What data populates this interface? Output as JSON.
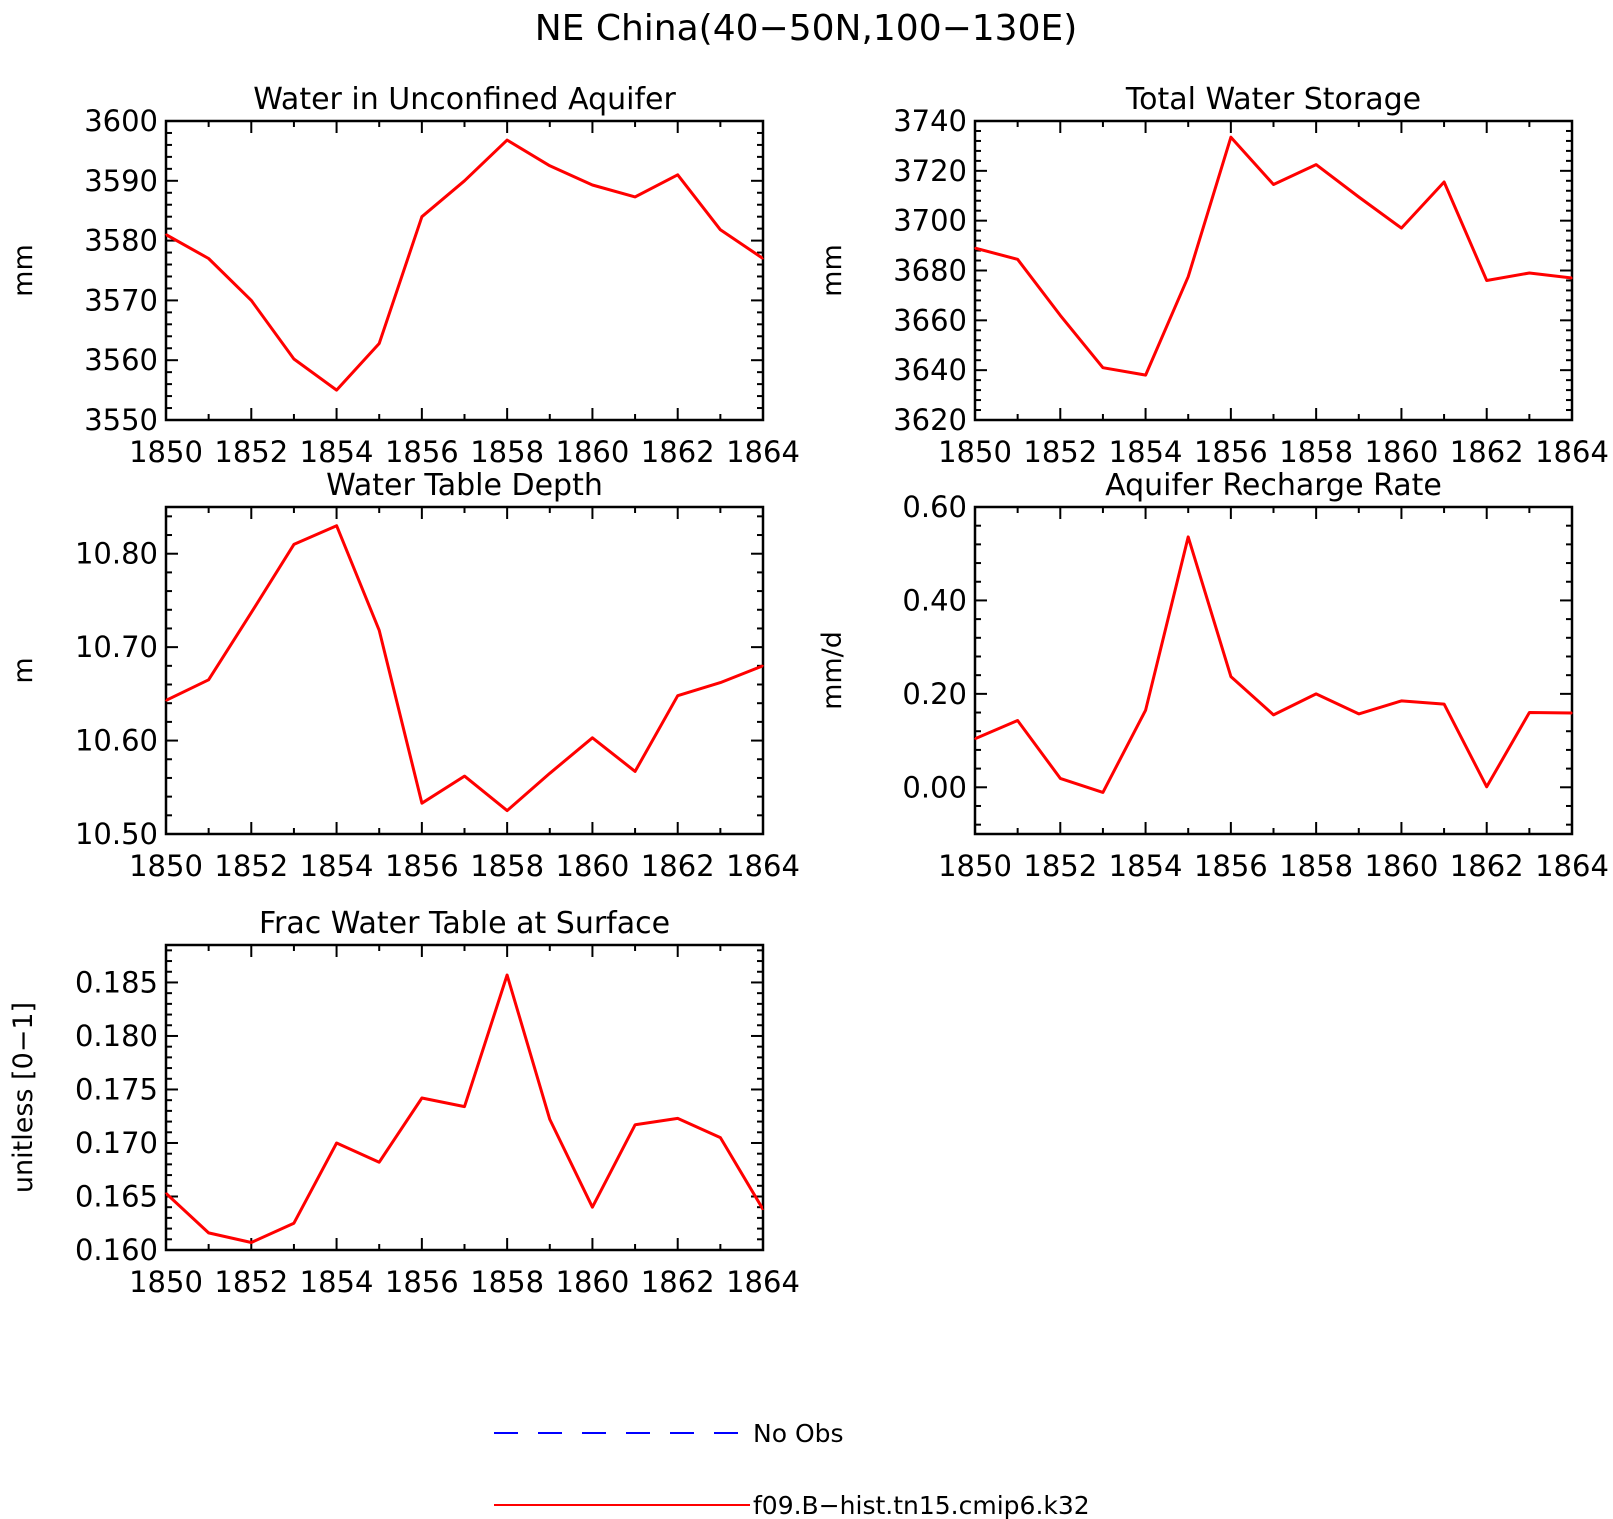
{
  "title": "NE China(40−50N,100−130E)",
  "colors": {
    "model": "#ff0000",
    "obs": "#0000ff",
    "axis": "#000000"
  },
  "legend": {
    "placement": "bottom-center",
    "items": [
      {
        "label": "No Obs",
        "color": "#0000ff",
        "dash": "dashed"
      },
      {
        "label": "f09.B−hist.tn15.cmip6.k32",
        "color": "#ff0000",
        "dash": "solid"
      }
    ]
  },
  "chart_data": [
    {
      "type": "line",
      "title": "Water in Unconfined Aquifer",
      "ylabel": "mm",
      "xlim": [
        1850,
        1864
      ],
      "ylim": [
        3550,
        3600
      ],
      "xticks": [
        "1850",
        "1852",
        "1854",
        "1856",
        "1858",
        "1860",
        "1862",
        "1864"
      ],
      "yticks": [
        "3550",
        "3560",
        "3570",
        "3580",
        "3590",
        "3600"
      ],
      "x": [
        1850,
        1851,
        1852,
        1853,
        1854,
        1855,
        1856,
        1857,
        1858,
        1859,
        1860,
        1861,
        1862,
        1863,
        1864
      ],
      "series": [
        {
          "values": [
            3581,
            3577,
            3570,
            3560.2,
            3555,
            3562.8,
            3584,
            3590,
            3596.8,
            3592.5,
            3589.3,
            3587.3,
            3591,
            3581.8,
            3577
          ]
        }
      ]
    },
    {
      "type": "line",
      "title": "Total Water Storage",
      "ylabel": "mm",
      "xlim": [
        1850,
        1864
      ],
      "ylim": [
        3620,
        3740
      ],
      "xticks": [
        "1850",
        "1852",
        "1854",
        "1856",
        "1858",
        "1860",
        "1862",
        "1864"
      ],
      "yticks": [
        "3620",
        "3640",
        "3660",
        "3680",
        "3700",
        "3720",
        "3740"
      ],
      "x": [
        1850,
        1851,
        1852,
        1853,
        1854,
        1855,
        1856,
        1857,
        1858,
        1859,
        1860,
        1861,
        1862,
        1863,
        1864
      ],
      "series": [
        {
          "values": [
            3689,
            3684.5,
            3662,
            3641,
            3638,
            3677.5,
            3733.5,
            3714.5,
            3722.5,
            3709.5,
            3697,
            3715.5,
            3676,
            3679,
            3677
          ]
        }
      ]
    },
    {
      "type": "line",
      "title": "Water Table Depth",
      "ylabel": "m",
      "xlim": [
        1850,
        1864
      ],
      "ylim": [
        10.5,
        10.85
      ],
      "xticks": [
        "1850",
        "1852",
        "1854",
        "1856",
        "1858",
        "1860",
        "1862",
        "1864"
      ],
      "yticks": [
        "10.50",
        "10.60",
        "10.70",
        "10.80"
      ],
      "x": [
        1850,
        1851,
        1852,
        1853,
        1854,
        1855,
        1856,
        1857,
        1858,
        1859,
        1860,
        1861,
        1862,
        1863,
        1864
      ],
      "series": [
        {
          "values": [
            10.643,
            10.665,
            10.737,
            10.81,
            10.83,
            10.718,
            10.533,
            10.562,
            10.525,
            10.565,
            10.603,
            10.567,
            10.648,
            10.662,
            10.68
          ]
        }
      ]
    },
    {
      "type": "line",
      "title": "Aquifer Recharge Rate",
      "ylabel": "mm/d",
      "xlim": [
        1850,
        1864
      ],
      "ylim": [
        -0.1,
        0.6
      ],
      "xticks": [
        "1850",
        "1852",
        "1854",
        "1856",
        "1858",
        "1860",
        "1862",
        "1864"
      ],
      "yticks": [
        "0.00",
        "0.20",
        "0.40",
        "0.60"
      ],
      "x": [
        1850,
        1851,
        1852,
        1853,
        1854,
        1855,
        1856,
        1857,
        1858,
        1859,
        1860,
        1861,
        1862,
        1863,
        1864
      ],
      "series": [
        {
          "values": [
            0.104,
            0.143,
            0.019,
            -0.011,
            0.165,
            0.536,
            0.237,
            0.155,
            0.2,
            0.157,
            0.185,
            0.178,
            0.001,
            0.16,
            0.159
          ]
        }
      ]
    },
    {
      "type": "line",
      "title": "Frac Water Table at Surface",
      "ylabel": "unitless [0−1]",
      "xlim": [
        1850,
        1864
      ],
      "ylim": [
        0.16,
        0.1885
      ],
      "xticks": [
        "1850",
        "1852",
        "1854",
        "1856",
        "1858",
        "1860",
        "1862",
        "1864"
      ],
      "yticks": [
        "0.160",
        "0.165",
        "0.170",
        "0.175",
        "0.180",
        "0.185"
      ],
      "x": [
        1850,
        1851,
        1852,
        1853,
        1854,
        1855,
        1856,
        1857,
        1858,
        1859,
        1860,
        1861,
        1862,
        1863,
        1864
      ],
      "series": [
        {
          "values": [
            0.1653,
            0.1616,
            0.1607,
            0.1625,
            0.17,
            0.1682,
            0.1742,
            0.1734,
            0.1857,
            0.1722,
            0.164,
            0.1717,
            0.1723,
            0.1705,
            0.1638
          ]
        }
      ]
    }
  ]
}
